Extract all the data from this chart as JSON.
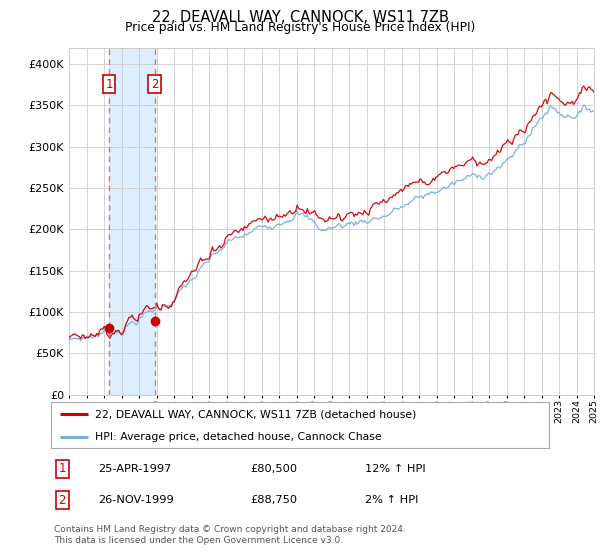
{
  "title": "22, DEAVALL WAY, CANNOCK, WS11 7ZB",
  "subtitle": "Price paid vs. HM Land Registry's House Price Index (HPI)",
  "hpi_label": "HPI: Average price, detached house, Cannock Chase",
  "price_label": "22, DEAVALL WAY, CANNOCK, WS11 7ZB (detached house)",
  "legend_note": "Contains HM Land Registry data © Crown copyright and database right 2024.\nThis data is licensed under the Open Government Licence v3.0.",
  "sale1_date": "25-APR-1997",
  "sale1_price": 80500,
  "sale1_hpi_pct": "12% ↑ HPI",
  "sale2_date": "26-NOV-1999",
  "sale2_price": 88750,
  "sale2_hpi_pct": "2% ↑ HPI",
  "sale1_year": 1997.29,
  "sale2_year": 1999.9,
  "ylim": [
    0,
    420000
  ],
  "yticks": [
    0,
    50000,
    100000,
    150000,
    200000,
    250000,
    300000,
    350000,
    400000
  ],
  "price_line_color": "#cc0000",
  "hpi_line_color": "#7aadda",
  "sale_marker_color": "#cc0000",
  "dashed_line_color": "#e87070",
  "bg_highlight_color": "#ddeeff",
  "grid_color": "#cccccc",
  "table_border_color": "#cc0000",
  "chart_bg": "#ffffff",
  "fig_bg": "#ffffff"
}
